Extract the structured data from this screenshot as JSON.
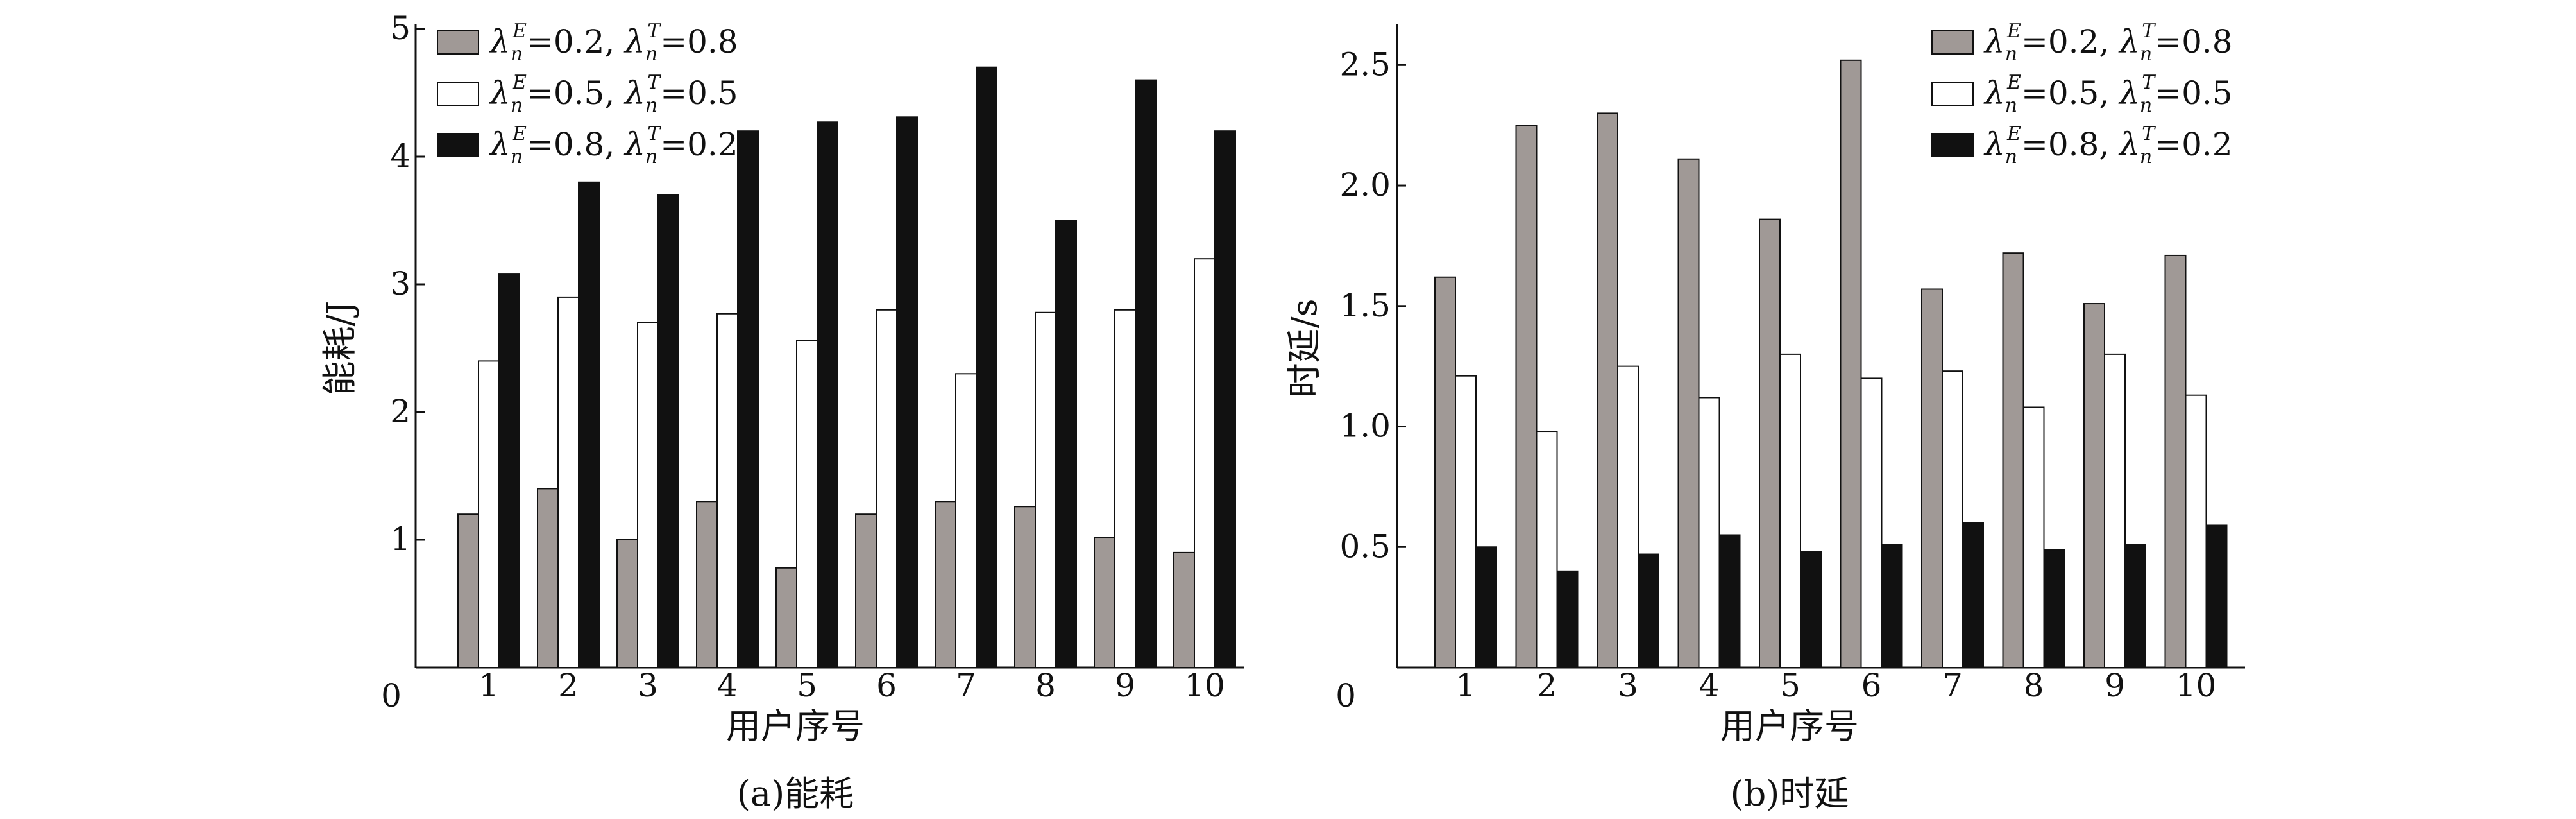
{
  "chart_data": [
    {
      "type": "bar",
      "caption": "(a)能耗",
      "xlabel": "用户序号",
      "ylabel": "能耗/J",
      "categories": [
        "1",
        "2",
        "3",
        "4",
        "5",
        "6",
        "7",
        "8",
        "9",
        "10"
      ],
      "ylim": [
        0,
        5
      ],
      "yticks": [
        "0",
        "1",
        "2",
        "3",
        "4",
        "5"
      ],
      "grid": false,
      "legend_position": "top-left",
      "series": [
        {
          "name": "λnE=0.2, λnT=0.8",
          "legend": {
            "e": "0.2",
            "t": "0.8"
          },
          "color": "#a09996",
          "values": [
            1.2,
            1.4,
            1.0,
            1.3,
            0.78,
            1.2,
            1.3,
            1.26,
            1.02,
            0.9
          ]
        },
        {
          "name": "λnE=0.5, λnT=0.5",
          "legend": {
            "e": "0.5",
            "t": "0.5"
          },
          "color": "#ffffff",
          "values": [
            2.4,
            2.9,
            2.7,
            2.77,
            2.56,
            2.8,
            2.3,
            2.78,
            2.8,
            3.2
          ]
        },
        {
          "name": "λnE=0.8, λnT=0.2",
          "legend": {
            "e": "0.8",
            "t": "0.2"
          },
          "color": "#111111",
          "values": [
            3.08,
            3.8,
            3.7,
            4.2,
            4.27,
            4.31,
            4.7,
            3.5,
            4.6,
            4.2
          ]
        }
      ]
    },
    {
      "type": "bar",
      "caption": "(b)时延",
      "xlabel": "用户序号",
      "ylabel": "时延/s",
      "categories": [
        "1",
        "2",
        "3",
        "4",
        "5",
        "6",
        "7",
        "8",
        "9",
        "10"
      ],
      "ylim": [
        0,
        2.65
      ],
      "yticks": [
        "0",
        "0.5",
        "1.0",
        "1.5",
        "2.0",
        "2.5"
      ],
      "grid": false,
      "legend_position": "top-right",
      "series": [
        {
          "name": "λnE=0.2, λnT=0.8",
          "legend": {
            "e": "0.2",
            "t": "0.8"
          },
          "color": "#a09996",
          "values": [
            1.62,
            2.25,
            2.3,
            2.11,
            1.86,
            2.52,
            1.57,
            1.72,
            1.51,
            1.71
          ]
        },
        {
          "name": "λnE=0.5, λnT=0.5",
          "legend": {
            "e": "0.5",
            "t": "0.5"
          },
          "color": "#ffffff",
          "values": [
            1.21,
            0.98,
            1.25,
            1.12,
            1.3,
            1.2,
            1.23,
            1.08,
            1.3,
            1.13
          ]
        },
        {
          "name": "λnE=0.8, λnT=0.2",
          "legend": {
            "e": "0.8",
            "t": "0.2"
          },
          "color": "#111111",
          "values": [
            0.5,
            0.4,
            0.47,
            0.55,
            0.48,
            0.51,
            0.6,
            0.49,
            0.51,
            0.59
          ]
        }
      ]
    }
  ]
}
